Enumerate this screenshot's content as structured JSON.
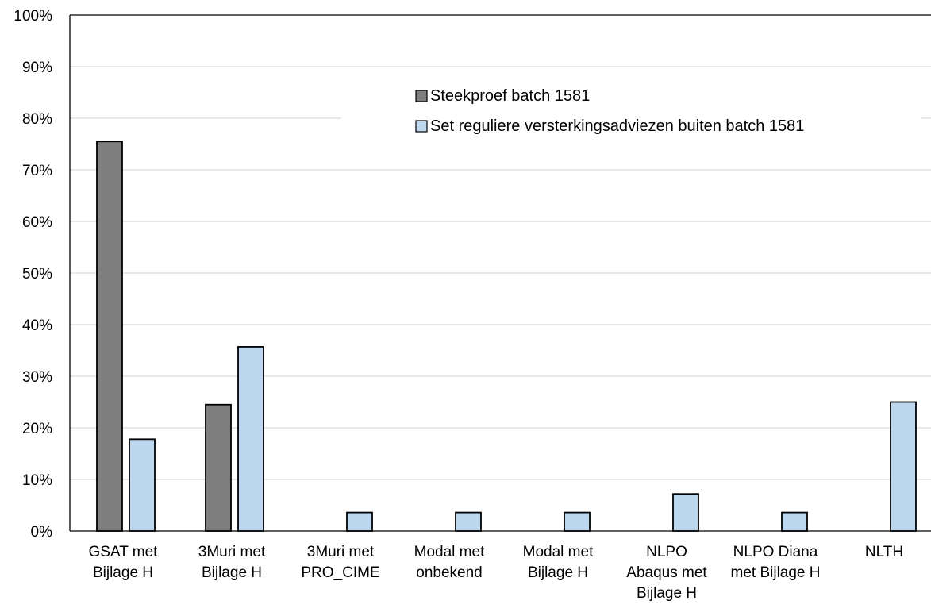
{
  "chart_data": {
    "type": "bar",
    "title": "",
    "xlabel": "",
    "ylabel": "",
    "ylim": [
      0,
      1
    ],
    "yticks": [
      "0%",
      "10%",
      "20%",
      "30%",
      "40%",
      "50%",
      "60%",
      "70%",
      "80%",
      "90%",
      "100%"
    ],
    "grid": true,
    "legend_position": "top-right",
    "categories": [
      [
        "GSAT met",
        "Bijlage H"
      ],
      [
        "3Muri met",
        "Bijlage H"
      ],
      [
        "3Muri met",
        "PRO_CIME"
      ],
      [
        "Modal met",
        "onbekend"
      ],
      [
        "Modal met",
        "Bijlage H"
      ],
      [
        "NLPO",
        "Abaqus met",
        "Bijlage H"
      ],
      [
        "NLPO Diana",
        "met Bijlage H"
      ],
      [
        "NLTH"
      ]
    ],
    "series": [
      {
        "name": "Steekproef batch 1581",
        "color": "#7f7f7f",
        "values": [
          0.755,
          0.245,
          0,
          0,
          0,
          0,
          0,
          0
        ]
      },
      {
        "name": "Set reguliere versterkingsadviezen buiten batch 1581",
        "color": "#bdd7ee",
        "values": [
          0.178,
          0.357,
          0.036,
          0.036,
          0.036,
          0.072,
          0.036,
          0.25
        ]
      }
    ]
  }
}
